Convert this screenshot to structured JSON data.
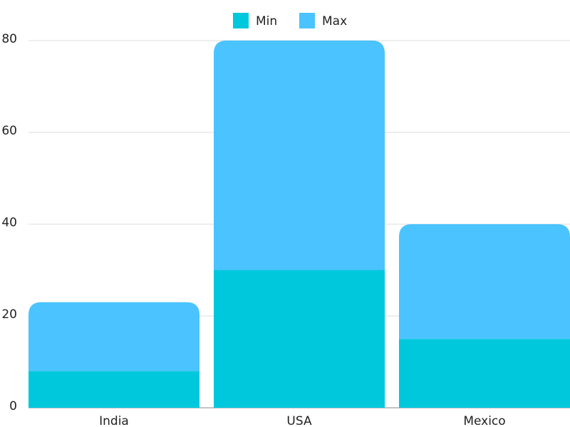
{
  "chart_data": {
    "type": "stacked-bar",
    "categories": [
      "India",
      "USA",
      "Mexico"
    ],
    "series": [
      {
        "name": "Min",
        "color": "#00c8dc",
        "values": [
          8,
          30,
          15
        ]
      },
      {
        "name": "Max",
        "color": "#4bc3ff",
        "values": [
          15,
          50,
          25
        ]
      }
    ],
    "ylim": [
      0,
      80
    ],
    "yticks": [
      0,
      20,
      40,
      60,
      80
    ],
    "grid": true,
    "legend": "top"
  }
}
